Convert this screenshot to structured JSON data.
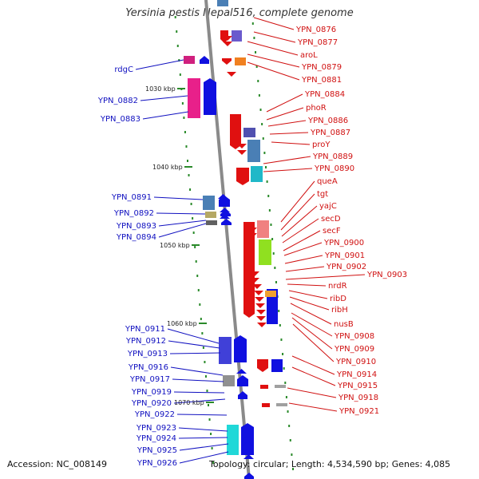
{
  "title": "Yersinia pestis Nepal516, complete genome",
  "accession": "Accession: NC_008149",
  "topology": "Topology: circular; Length: 4,534,590 bp; Genes: 4,085",
  "colors": {
    "forward_label": "#1010c0",
    "reverse_label": "#d01010",
    "tick": "#2a8a2a",
    "backbone": "#8a8a8a"
  },
  "scale_labels": [
    "1030 kbp",
    "1040 kbp",
    "1050 kbp",
    "1060 kbp",
    "1070 kbp"
  ],
  "forward_genes": [
    "rdgC",
    "YPN_0882",
    "YPN_0883",
    "YPN_0891",
    "YPN_0892",
    "YPN_0893",
    "YPN_0894",
    "YPN_0911",
    "YPN_0912",
    "YPN_0913",
    "YPN_0916",
    "YPN_0917",
    "YPN_0919",
    "YPN_0920",
    "YPN_0922",
    "YPN_0923",
    "YPN_0924",
    "YPN_0925",
    "YPN_0926"
  ],
  "reverse_genes": [
    "YPN_0876",
    "YPN_0877",
    "aroL",
    "YPN_0879",
    "YPN_0881",
    "YPN_0884",
    "phoR",
    "YPN_0886",
    "YPN_0887",
    "proY",
    "YPN_0889",
    "YPN_0890",
    "queA",
    "tgt",
    "yajC",
    "secD",
    "secF",
    "YPN_0900",
    "YPN_0901",
    "YPN_0902",
    "YPN_0903",
    "nrdR",
    "ribD",
    "ribH",
    "nusB",
    "YPN_0908",
    "YPN_0909",
    "YPN_0910",
    "YPN_0914",
    "YPN_0915",
    "YPN_0918",
    "YPN_0921"
  ]
}
